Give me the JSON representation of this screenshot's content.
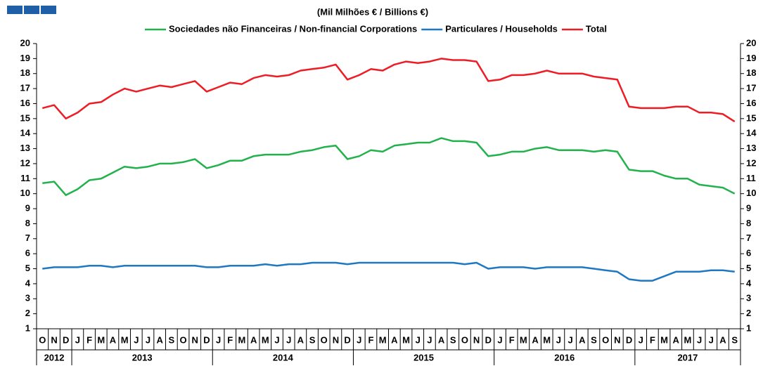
{
  "chart_data": {
    "type": "line",
    "title": "(Mil Milhões € / Billions €)",
    "categories": [
      "O",
      "N",
      "D",
      "J",
      "F",
      "M",
      "A",
      "M",
      "J",
      "J",
      "A",
      "S",
      "O",
      "N",
      "D",
      "J",
      "F",
      "M",
      "A",
      "M",
      "J",
      "J",
      "A",
      "S",
      "O",
      "N",
      "D",
      "J",
      "F",
      "M",
      "A",
      "M",
      "J",
      "J",
      "A",
      "S",
      "O",
      "N",
      "D",
      "J",
      "F",
      "M",
      "A",
      "M",
      "J",
      "J",
      "A",
      "S",
      "O",
      "N",
      "D",
      "J",
      "F",
      "M",
      "A",
      "M",
      "J",
      "J",
      "A",
      "S"
    ],
    "years": [
      "2012",
      "2012",
      "2012",
      "2013",
      "2013",
      "2013",
      "2013",
      "2013",
      "2013",
      "2013",
      "2013",
      "2013",
      "2013",
      "2013",
      "2013",
      "2014",
      "2014",
      "2014",
      "2014",
      "2014",
      "2014",
      "2014",
      "2014",
      "2014",
      "2014",
      "2014",
      "2014",
      "2015",
      "2015",
      "2015",
      "2015",
      "2015",
      "2015",
      "2015",
      "2015",
      "2015",
      "2015",
      "2015",
      "2015",
      "2016",
      "2016",
      "2016",
      "2016",
      "2016",
      "2016",
      "2016",
      "2016",
      "2016",
      "2016",
      "2016",
      "2016",
      "2017",
      "2017",
      "2017",
      "2017",
      "2017",
      "2017",
      "2017",
      "2017",
      "2017"
    ],
    "series": [
      {
        "name": "Sociedades não Financeiras / Non-financial Corporations",
        "color": "#22b24c",
        "values": [
          10.7,
          10.8,
          9.9,
          10.3,
          10.9,
          11.0,
          11.4,
          11.8,
          11.7,
          11.8,
          12.0,
          12.0,
          12.1,
          12.3,
          11.7,
          11.9,
          12.2,
          12.2,
          12.5,
          12.6,
          12.6,
          12.6,
          12.8,
          12.9,
          13.1,
          13.2,
          12.3,
          12.5,
          12.9,
          12.8,
          13.2,
          13.3,
          13.4,
          13.4,
          13.7,
          13.5,
          13.5,
          13.4,
          12.5,
          12.6,
          12.8,
          12.8,
          13.0,
          13.1,
          12.9,
          12.9,
          12.9,
          12.8,
          12.9,
          12.8,
          11.6,
          11.5,
          11.5,
          11.2,
          11.0,
          11.0,
          10.6,
          10.5,
          10.4,
          10.0
        ]
      },
      {
        "name": "Particulares / Households",
        "color": "#1f78c1",
        "values": [
          5.0,
          5.1,
          5.1,
          5.1,
          5.2,
          5.2,
          5.1,
          5.2,
          5.2,
          5.2,
          5.2,
          5.2,
          5.2,
          5.2,
          5.1,
          5.1,
          5.2,
          5.2,
          5.2,
          5.3,
          5.2,
          5.3,
          5.3,
          5.4,
          5.4,
          5.4,
          5.3,
          5.4,
          5.4,
          5.4,
          5.4,
          5.4,
          5.4,
          5.4,
          5.4,
          5.4,
          5.3,
          5.4,
          5.0,
          5.1,
          5.1,
          5.1,
          5.0,
          5.1,
          5.1,
          5.1,
          5.1,
          5.0,
          4.9,
          4.8,
          4.3,
          4.2,
          4.2,
          4.5,
          4.8,
          4.8,
          4.8,
          4.9,
          4.9,
          4.8
        ]
      },
      {
        "name": "Total",
        "color": "#ee1c25",
        "values": [
          15.7,
          15.9,
          15.0,
          15.4,
          16.0,
          16.1,
          16.6,
          17.0,
          16.8,
          17.0,
          17.2,
          17.1,
          17.3,
          17.5,
          16.8,
          17.1,
          17.4,
          17.3,
          17.7,
          17.9,
          17.8,
          17.9,
          18.2,
          18.3,
          18.4,
          18.6,
          17.6,
          17.9,
          18.3,
          18.2,
          18.6,
          18.8,
          18.7,
          18.8,
          19.0,
          18.9,
          18.9,
          18.8,
          17.5,
          17.6,
          17.9,
          17.9,
          18.0,
          18.2,
          18.0,
          18.0,
          18.0,
          17.8,
          17.7,
          17.6,
          15.8,
          15.7,
          15.7,
          15.7,
          15.8,
          15.8,
          15.4,
          15.4,
          15.3,
          14.8
        ]
      }
    ],
    "ylim": [
      1,
      20
    ],
    "yticks": [
      1,
      2,
      3,
      4,
      5,
      6,
      7,
      8,
      9,
      10,
      11,
      12,
      13,
      14,
      15,
      16,
      17,
      18,
      19,
      20
    ]
  }
}
